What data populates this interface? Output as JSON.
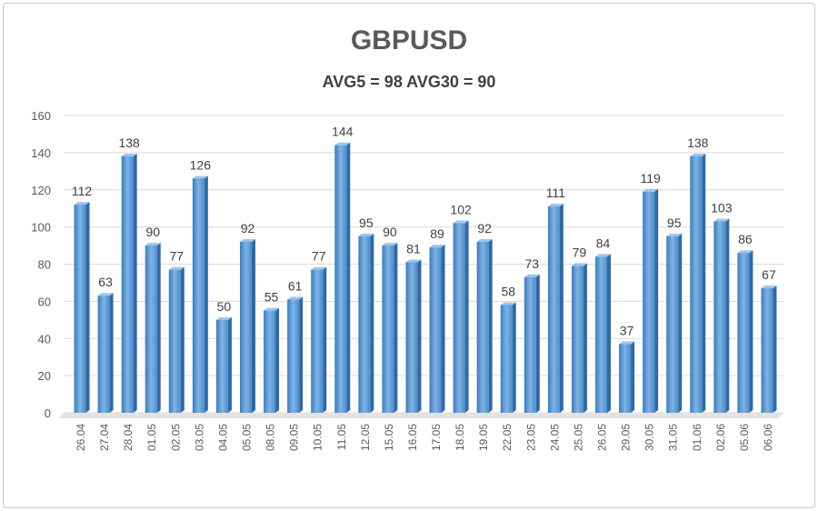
{
  "chart_data": {
    "type": "bar",
    "title": "GBPUSD",
    "subtitle": "AVG5 = 98 AVG30 = 90",
    "categories": [
      "26.04",
      "27.04",
      "28.04",
      "01.05",
      "02.05",
      "03.05",
      "04.05",
      "05.05",
      "08.05",
      "09.05",
      "10.05",
      "11.05",
      "12.05",
      "15.05",
      "16.05",
      "17.05",
      "18.05",
      "19.05",
      "22.05",
      "23.05",
      "24.05",
      "25.05",
      "26.05",
      "29.05",
      "30.05",
      "31.05",
      "01.06",
      "02.06",
      "05.06",
      "06.06"
    ],
    "values": [
      112,
      63,
      138,
      90,
      77,
      126,
      50,
      92,
      55,
      61,
      77,
      144,
      95,
      90,
      81,
      89,
      102,
      92,
      58,
      73,
      111,
      79,
      84,
      37,
      119,
      95,
      138,
      103,
      86,
      67
    ],
    "ylim": [
      0,
      160
    ],
    "yticks": [
      0,
      20,
      40,
      60,
      80,
      100,
      120,
      140,
      160
    ],
    "grid": true,
    "bar_color": "#5b9bd5",
    "xlabel": "",
    "ylabel": ""
  }
}
